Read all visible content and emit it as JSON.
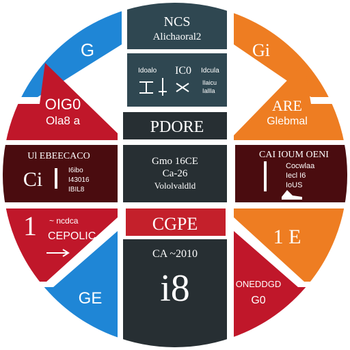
{
  "colors": {
    "blue": "#1f86d6",
    "red": "#c0172a",
    "orange": "#ee7d22",
    "dark_red": "#4a0c0f",
    "slate": "#2f4751",
    "dark": "#272f33",
    "banner_red": "#c4202b"
  },
  "segments": {
    "top_left": {
      "label": "G"
    },
    "top_right": {
      "label": "Gi"
    },
    "upper_left": {
      "title": "OIG0",
      "subtitle": "Ola8 a"
    },
    "upper_right": {
      "title": "ARE",
      "subtitle": "Glebmal"
    },
    "mid_left": {
      "header": "Ul EBEECACO",
      "symbol": "Ci",
      "line1": "I6ibo",
      "line2": "I43016",
      "line3": "IBIL8"
    },
    "mid_right": {
      "header": "CAI  IOUM  OENI",
      "line1": "Cocwlaa",
      "line2": "Iecl I6",
      "line3": "IoUS"
    },
    "lower_left": {
      "number": "1",
      "line1": "~ ncdca",
      "line2": "CEPOLIC"
    },
    "lower_right": {
      "number": "1 E"
    },
    "bottom_left": {
      "label": "GE"
    },
    "bottom_right": {
      "line1": "ONEDDGD",
      "line2": "G0"
    }
  },
  "center": {
    "top_box": {
      "line1": "NCS",
      "line2": "Alichaoral2"
    },
    "table_box": {
      "col1": "Idoalo",
      "col2": "IC0",
      "col3": "Idcula",
      "sub1": "Ilaicu",
      "sub2": "Iallla"
    },
    "pdore_box": {
      "label": "PDORE"
    },
    "info_box": {
      "line1": "Gmo 16CE",
      "line2": "Ca-26",
      "line3": "Vololvaldld"
    },
    "banner": {
      "label": "CGPE"
    },
    "bottom_box": {
      "line1": "CA ~2010",
      "big": "i8"
    }
  }
}
